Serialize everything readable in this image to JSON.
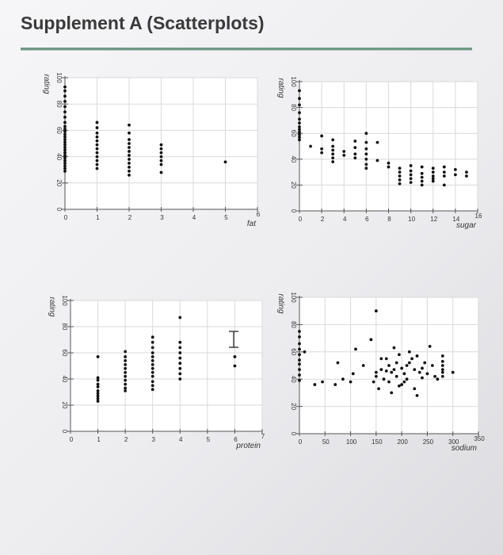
{
  "page": {
    "title": "Supplement A (Scatterplots)"
  },
  "chart_data": [
    {
      "type": "scatter",
      "xlabel": "fat",
      "ylabel": "rating",
      "xlim": [
        0,
        6
      ],
      "ylim": [
        0,
        100
      ],
      "xticks": [
        0,
        1,
        2,
        3,
        4,
        5,
        6
      ],
      "yticks": [
        0,
        20,
        40,
        60,
        80,
        100
      ],
      "points": [
        [
          0,
          93
        ],
        [
          0,
          90
        ],
        [
          0,
          86
        ],
        [
          0,
          82
        ],
        [
          0,
          78
        ],
        [
          0,
          74
        ],
        [
          0,
          70
        ],
        [
          0,
          66
        ],
        [
          0,
          63
        ],
        [
          0,
          61
        ],
        [
          0,
          59
        ],
        [
          0,
          57
        ],
        [
          0,
          55
        ],
        [
          0,
          53
        ],
        [
          0,
          51
        ],
        [
          0,
          49
        ],
        [
          0,
          47
        ],
        [
          0,
          45
        ],
        [
          0,
          43
        ],
        [
          0,
          41
        ],
        [
          0,
          39
        ],
        [
          0,
          37
        ],
        [
          0,
          35
        ],
        [
          0,
          33
        ],
        [
          0,
          31
        ],
        [
          0,
          29
        ],
        [
          1,
          66
        ],
        [
          1,
          62
        ],
        [
          1,
          58
        ],
        [
          1,
          55
        ],
        [
          1,
          52
        ],
        [
          1,
          49
        ],
        [
          1,
          46
        ],
        [
          1,
          43
        ],
        [
          1,
          40
        ],
        [
          1,
          37
        ],
        [
          1,
          34
        ],
        [
          1,
          31
        ],
        [
          2,
          64
        ],
        [
          2,
          58
        ],
        [
          2,
          53
        ],
        [
          2,
          50
        ],
        [
          2,
          47
        ],
        [
          2,
          44
        ],
        [
          2,
          41
        ],
        [
          2,
          38
        ],
        [
          2,
          35
        ],
        [
          2,
          32
        ],
        [
          2,
          29
        ],
        [
          2,
          26
        ],
        [
          3,
          49
        ],
        [
          3,
          46
        ],
        [
          3,
          43
        ],
        [
          3,
          40
        ],
        [
          3,
          37
        ],
        [
          3,
          34
        ],
        [
          3,
          28
        ],
        [
          5,
          36
        ]
      ]
    },
    {
      "type": "scatter",
      "xlabel": "sugar",
      "ylabel": "rating",
      "xlim": [
        0,
        16
      ],
      "ylim": [
        0,
        100
      ],
      "xticks": [
        0,
        2,
        4,
        6,
        8,
        10,
        12,
        14,
        16
      ],
      "yticks": [
        0,
        20,
        40,
        60,
        80,
        100
      ],
      "points": [
        [
          0,
          93
        ],
        [
          0,
          87
        ],
        [
          0,
          82
        ],
        [
          0,
          76
        ],
        [
          0,
          71
        ],
        [
          0,
          68
        ],
        [
          0,
          65
        ],
        [
          0,
          63
        ],
        [
          0,
          61
        ],
        [
          0,
          59
        ],
        [
          0,
          57
        ],
        [
          0,
          55
        ],
        [
          1,
          50
        ],
        [
          2,
          58
        ],
        [
          2,
          48
        ],
        [
          2,
          45
        ],
        [
          3,
          55
        ],
        [
          3,
          50
        ],
        [
          3,
          47
        ],
        [
          3,
          44
        ],
        [
          3,
          41
        ],
        [
          3,
          38
        ],
        [
          4,
          46
        ],
        [
          4,
          43
        ],
        [
          5,
          54
        ],
        [
          5,
          49
        ],
        [
          5,
          44
        ],
        [
          5,
          41
        ],
        [
          6,
          60
        ],
        [
          6,
          53
        ],
        [
          6,
          48
        ],
        [
          6,
          44
        ],
        [
          6,
          40
        ],
        [
          6,
          36
        ],
        [
          6,
          33
        ],
        [
          7,
          53
        ],
        [
          7,
          39
        ],
        [
          8,
          37
        ],
        [
          8,
          34
        ],
        [
          9,
          33
        ],
        [
          9,
          30
        ],
        [
          9,
          27
        ],
        [
          9,
          24
        ],
        [
          9,
          21
        ],
        [
          10,
          35
        ],
        [
          10,
          31
        ],
        [
          10,
          28
        ],
        [
          10,
          25
        ],
        [
          10,
          22
        ],
        [
          11,
          34
        ],
        [
          11,
          29
        ],
        [
          11,
          26
        ],
        [
          11,
          23
        ],
        [
          11,
          20
        ],
        [
          12,
          33
        ],
        [
          12,
          30
        ],
        [
          12,
          27
        ],
        [
          12,
          25
        ],
        [
          12,
          23
        ],
        [
          13,
          34
        ],
        [
          13,
          30
        ],
        [
          13,
          27
        ],
        [
          13,
          20
        ],
        [
          14,
          32
        ],
        [
          14,
          28
        ],
        [
          15,
          30
        ],
        [
          15,
          27
        ]
      ]
    },
    {
      "type": "scatter",
      "xlabel": "protein",
      "ylabel": "rating",
      "xlim": [
        0,
        7
      ],
      "ylim": [
        0,
        100
      ],
      "xticks": [
        0,
        1,
        2,
        3,
        4,
        5,
        6,
        7
      ],
      "yticks": [
        0,
        20,
        40,
        60,
        80,
        100
      ],
      "points": [
        [
          1,
          57
        ],
        [
          1,
          41
        ],
        [
          1,
          39
        ],
        [
          1,
          36
        ],
        [
          1,
          34
        ],
        [
          1,
          31
        ],
        [
          1,
          29
        ],
        [
          1,
          27
        ],
        [
          1,
          25
        ],
        [
          1,
          23
        ],
        [
          2,
          61
        ],
        [
          2,
          57
        ],
        [
          2,
          54
        ],
        [
          2,
          51
        ],
        [
          2,
          48
        ],
        [
          2,
          45
        ],
        [
          2,
          42
        ],
        [
          2,
          39
        ],
        [
          2,
          36
        ],
        [
          2,
          33
        ],
        [
          2,
          31
        ],
        [
          3,
          72
        ],
        [
          3,
          68
        ],
        [
          3,
          64
        ],
        [
          3,
          60
        ],
        [
          3,
          57
        ],
        [
          3,
          54
        ],
        [
          3,
          51
        ],
        [
          3,
          48
        ],
        [
          3,
          45
        ],
        [
          3,
          42
        ],
        [
          3,
          38
        ],
        [
          3,
          35
        ],
        [
          3,
          32
        ],
        [
          4,
          87
        ],
        [
          4,
          68
        ],
        [
          4,
          64
        ],
        [
          4,
          60
        ],
        [
          4,
          56
        ],
        [
          4,
          52
        ],
        [
          4,
          48
        ],
        [
          4,
          44
        ],
        [
          4,
          40
        ],
        [
          6,
          57
        ],
        [
          6,
          50
        ]
      ]
    },
    {
      "type": "scatter",
      "xlabel": "sodium",
      "ylabel": "rating",
      "xlim": [
        0,
        350
      ],
      "ylim": [
        0,
        100
      ],
      "xticks": [
        0,
        50,
        100,
        150,
        200,
        250,
        300,
        350
      ],
      "yticks": [
        0,
        20,
        40,
        60,
        80,
        100
      ],
      "points": [
        [
          0,
          75
        ],
        [
          0,
          71
        ],
        [
          0,
          66
        ],
        [
          0,
          62
        ],
        [
          0,
          58
        ],
        [
          0,
          54
        ],
        [
          0,
          51
        ],
        [
          0,
          47
        ],
        [
          0,
          43
        ],
        [
          0,
          39
        ],
        [
          10,
          60
        ],
        [
          30,
          36
        ],
        [
          45,
          38
        ],
        [
          70,
          36
        ],
        [
          75,
          52
        ],
        [
          85,
          40
        ],
        [
          100,
          38
        ],
        [
          105,
          44
        ],
        [
          110,
          62
        ],
        [
          125,
          50
        ],
        [
          140,
          69
        ],
        [
          145,
          38
        ],
        [
          150,
          45
        ],
        [
          150,
          42
        ],
        [
          155,
          33
        ],
        [
          160,
          47
        ],
        [
          165,
          40
        ],
        [
          170,
          55
        ],
        [
          175,
          50
        ],
        [
          180,
          45
        ],
        [
          185,
          63
        ],
        [
          190,
          42
        ],
        [
          195,
          35
        ],
        [
          200,
          48
        ],
        [
          205,
          44
        ],
        [
          210,
          50
        ],
        [
          210,
          40
        ],
        [
          215,
          52
        ],
        [
          220,
          55
        ],
        [
          225,
          47
        ],
        [
          225,
          33
        ],
        [
          230,
          28
        ],
        [
          180,
          30
        ],
        [
          200,
          36
        ],
        [
          235,
          45
        ],
        [
          240,
          41
        ],
        [
          250,
          44
        ],
        [
          255,
          64
        ],
        [
          260,
          50
        ],
        [
          265,
          42
        ],
        [
          195,
          58
        ],
        [
          215,
          60
        ],
        [
          230,
          57
        ],
        [
          245,
          52
        ],
        [
          190,
          52
        ],
        [
          170,
          46
        ],
        [
          160,
          55
        ],
        [
          205,
          38
        ],
        [
          175,
          38
        ],
        [
          150,
          90
        ],
        [
          280,
          57
        ],
        [
          280,
          53
        ],
        [
          280,
          50
        ],
        [
          280,
          47
        ],
        [
          280,
          45
        ],
        [
          280,
          42
        ],
        [
          300,
          45
        ],
        [
          270,
          40
        ],
        [
          185,
          47
        ],
        [
          240,
          48
        ]
      ]
    }
  ]
}
